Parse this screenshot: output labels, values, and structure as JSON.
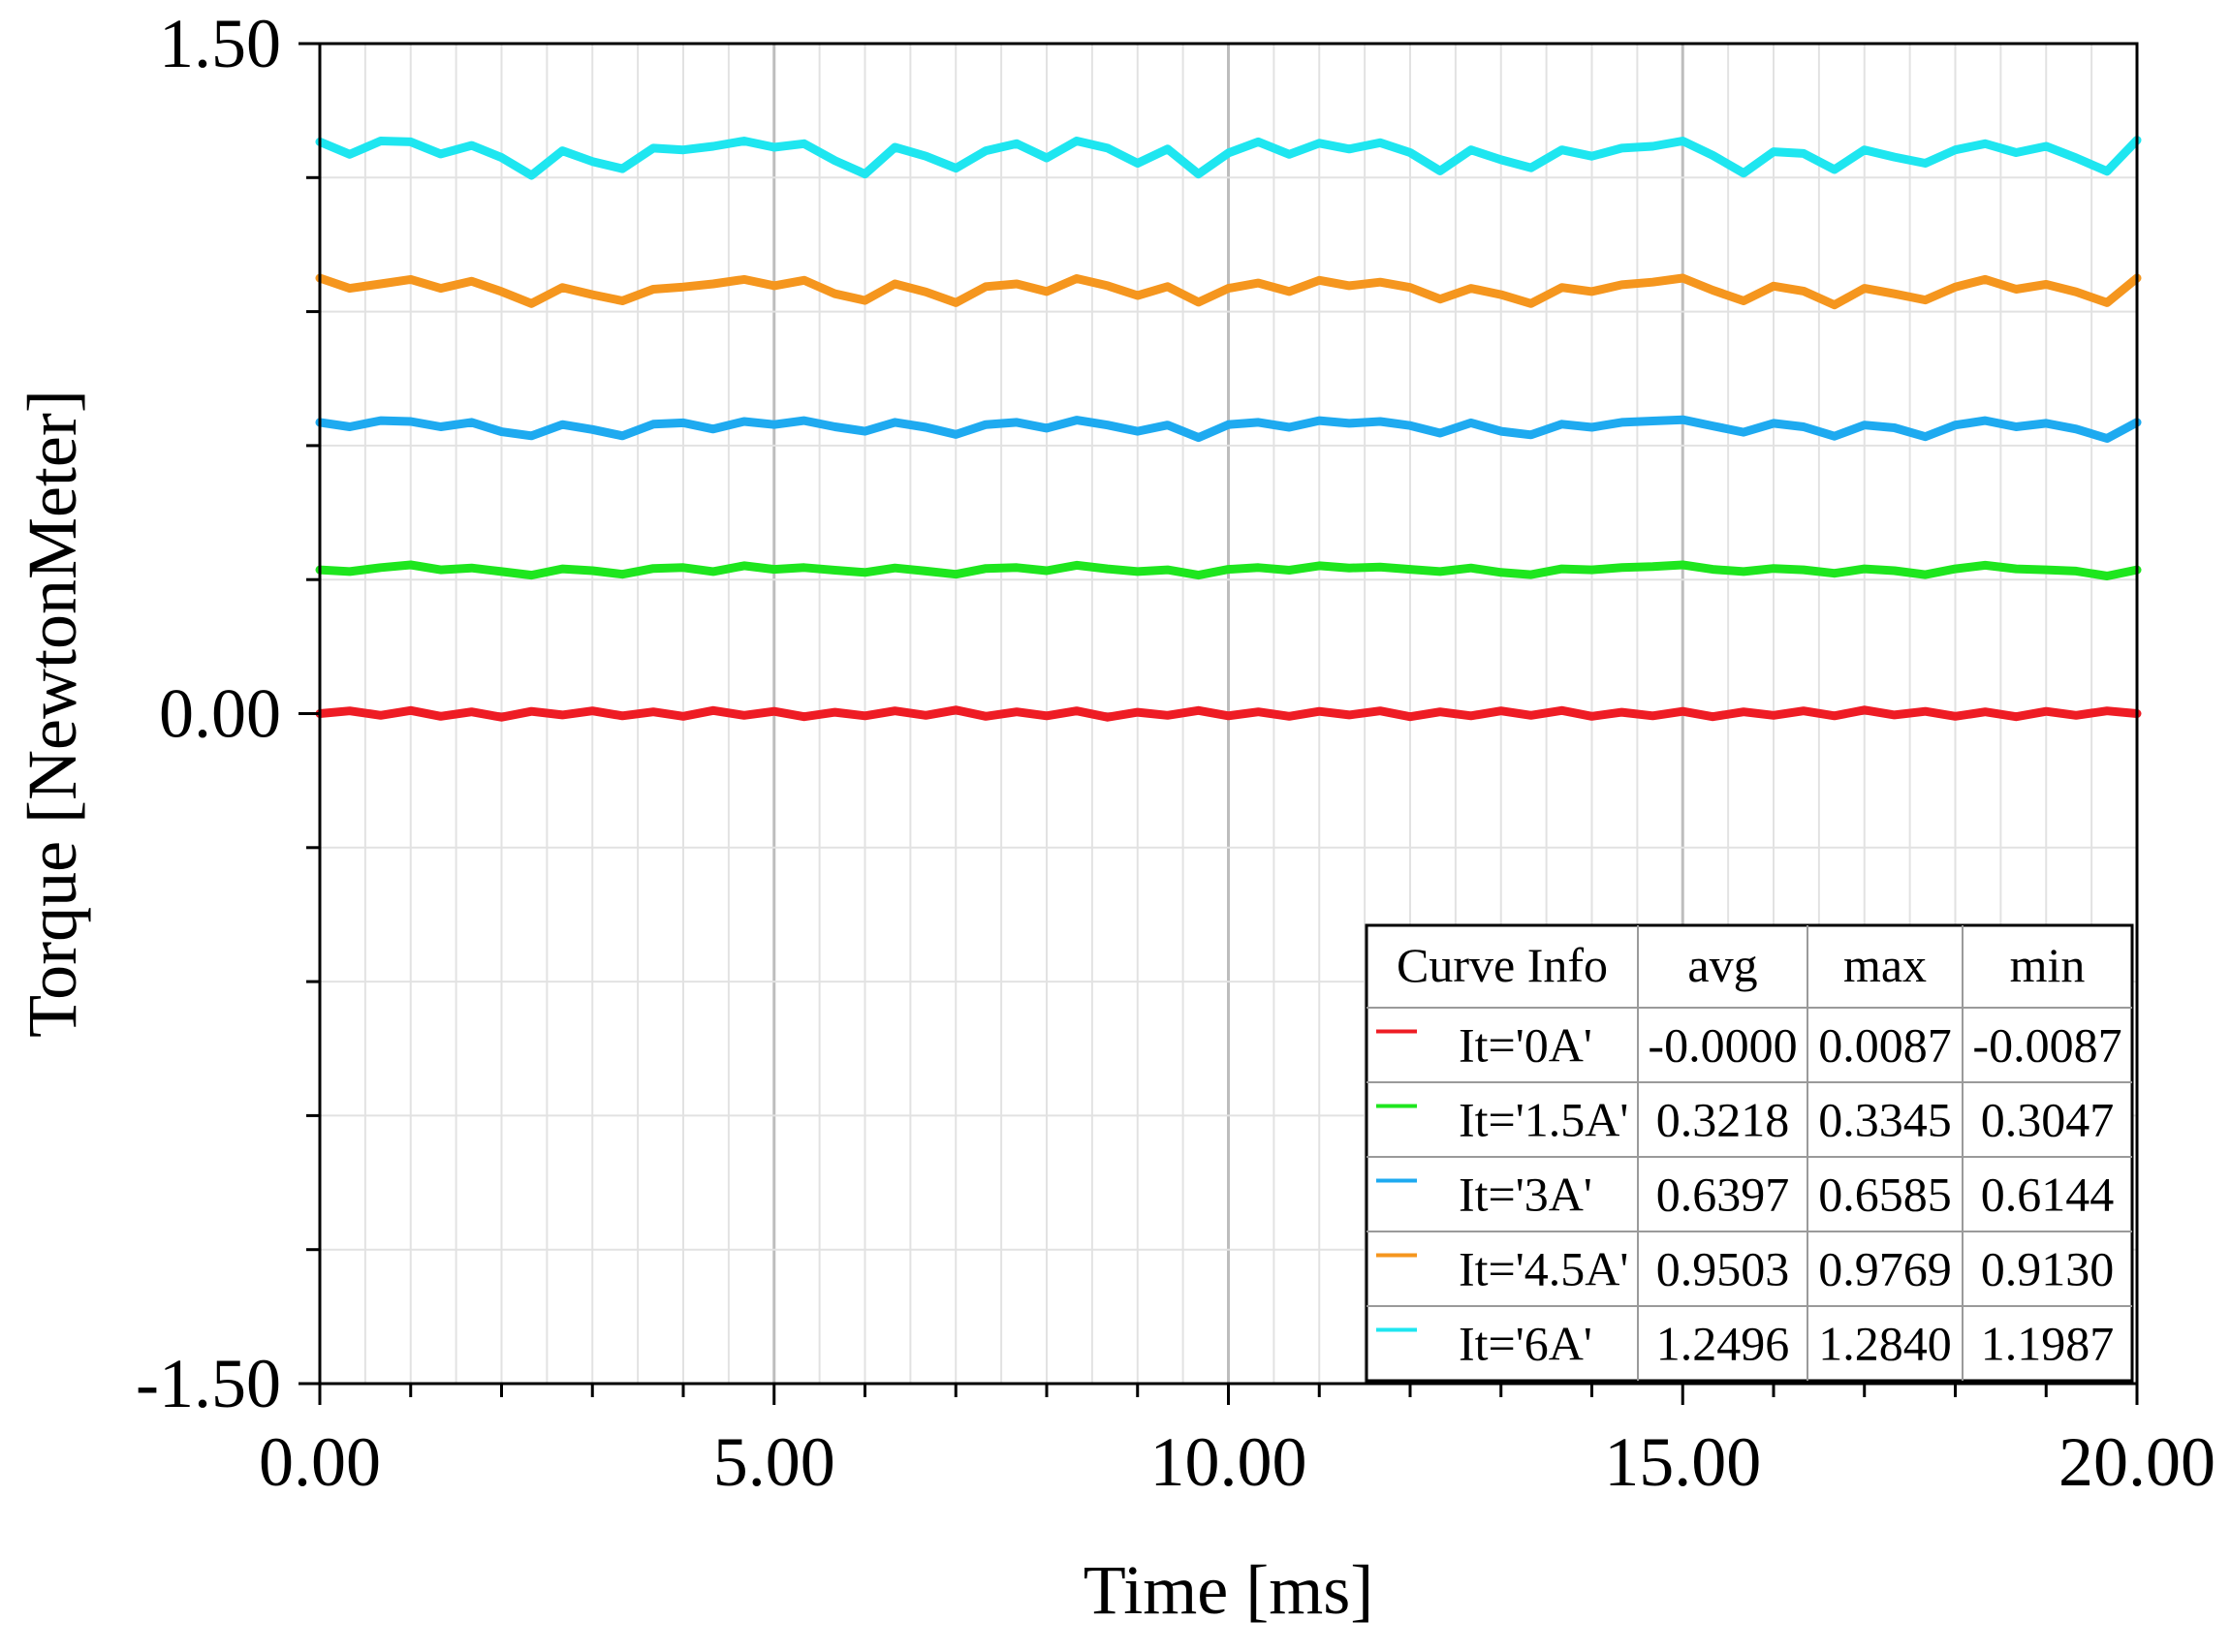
{
  "chart_data": {
    "type": "line",
    "title": "",
    "xlabel": "Time [ms]",
    "ylabel": "Torque [NewtonMeter]",
    "xlim": [
      0,
      20
    ],
    "ylim": [
      -1.5,
      1.5
    ],
    "x_ticks": [
      0,
      5,
      10,
      15,
      20
    ],
    "x_tick_labels": [
      "0.00",
      "5.00",
      "10.00",
      "15.00",
      "20.00"
    ],
    "y_ticks": [
      -1.5,
      0,
      1.5
    ],
    "y_tick_labels": [
      "-1.50",
      "0.00",
      "1.50"
    ],
    "grid": true,
    "legend": {
      "placement": "bottom-right",
      "headers": [
        "Curve Info",
        "avg",
        "max",
        "min"
      ]
    },
    "series": [
      {
        "name": "It='0A'",
        "color": "#ee1c24",
        "avg": "-0.0000",
        "max": "0.0087",
        "min": "-0.0087",
        "x": [
          0,
          0.33,
          0.67,
          1,
          1.33,
          1.67,
          2,
          2.33,
          2.67,
          3,
          3.33,
          3.67,
          4,
          4.33,
          4.67,
          5,
          5.33,
          5.67,
          6,
          6.33,
          6.67,
          7,
          7.33,
          7.67,
          8,
          8.33,
          8.67,
          9,
          9.33,
          9.67,
          10,
          10.33,
          10.67,
          11,
          11.33,
          11.67,
          12,
          12.33,
          12.67,
          13,
          13.33,
          13.67,
          14,
          14.33,
          14.67,
          15,
          15.33,
          15.67,
          16,
          16.33,
          16.67,
          17,
          17.33,
          17.67,
          18,
          18.33,
          18.67,
          19,
          19.33,
          19.67,
          20
        ],
        "y": [
          0,
          0.006,
          -0.004,
          0.007,
          -0.006,
          0.004,
          -0.008,
          0.005,
          -0.003,
          0.006,
          -0.005,
          0.004,
          -0.006,
          0.007,
          -0.004,
          0.005,
          -0.007,
          0.003,
          -0.005,
          0.006,
          -0.004,
          0.008,
          -0.006,
          0.004,
          -0.005,
          0.006,
          -0.008,
          0.003,
          -0.004,
          0.007,
          -0.005,
          0.004,
          -0.006,
          0.005,
          -0.003,
          0.006,
          -0.007,
          0.004,
          -0.005,
          0.006,
          -0.004,
          0.007,
          -0.006,
          0.003,
          -0.005,
          0.005,
          -0.007,
          0.004,
          -0.004,
          0.006,
          -0.005,
          0.008,
          -0.003,
          0.005,
          -0.006,
          0.004,
          -0.007,
          0.005,
          -0.004,
          0.006,
          0
        ]
      },
      {
        "name": "It='1.5A'",
        "color": "#1ee61e",
        "avg": "0.3218",
        "max": "0.3345",
        "min": "0.3047",
        "x": [
          0,
          0.33,
          0.67,
          1,
          1.33,
          1.67,
          2,
          2.33,
          2.67,
          3,
          3.33,
          3.67,
          4,
          4.33,
          4.67,
          5,
          5.33,
          5.67,
          6,
          6.33,
          6.67,
          7,
          7.33,
          7.67,
          8,
          8.33,
          8.67,
          9,
          9.33,
          9.67,
          10,
          10.33,
          10.67,
          11,
          11.33,
          11.67,
          12,
          12.33,
          12.67,
          13,
          13.33,
          13.67,
          14,
          14.33,
          14.67,
          15,
          15.33,
          15.67,
          16,
          16.33,
          16.67,
          17,
          17.33,
          17.67,
          18,
          18.33,
          18.67,
          19,
          19.33,
          19.67,
          20
        ],
        "y": [
          0.322,
          0.318,
          0.327,
          0.333,
          0.322,
          0.326,
          0.318,
          0.31,
          0.324,
          0.32,
          0.312,
          0.325,
          0.327,
          0.318,
          0.331,
          0.323,
          0.327,
          0.321,
          0.316,
          0.326,
          0.319,
          0.312,
          0.325,
          0.327,
          0.32,
          0.332,
          0.324,
          0.318,
          0.322,
          0.31,
          0.323,
          0.327,
          0.321,
          0.331,
          0.326,
          0.328,
          0.323,
          0.318,
          0.326,
          0.316,
          0.311,
          0.324,
          0.322,
          0.327,
          0.329,
          0.333,
          0.323,
          0.318,
          0.325,
          0.322,
          0.314,
          0.324,
          0.32,
          0.311,
          0.324,
          0.332,
          0.324,
          0.322,
          0.319,
          0.308,
          0.322
        ]
      },
      {
        "name": "It='3A'",
        "color": "#1eaaf0",
        "avg": "0.6397",
        "max": "0.6585",
        "min": "0.6144",
        "x": [
          0,
          0.33,
          0.67,
          1,
          1.33,
          1.67,
          2,
          2.33,
          2.67,
          3,
          3.33,
          3.67,
          4,
          4.33,
          4.67,
          5,
          5.33,
          5.67,
          6,
          6.33,
          6.67,
          7,
          7.33,
          7.67,
          8,
          8.33,
          8.67,
          9,
          9.33,
          9.67,
          10,
          10.33,
          10.67,
          11,
          11.33,
          11.67,
          12,
          12.33,
          12.67,
          13,
          13.33,
          13.67,
          14,
          14.33,
          14.67,
          15,
          15.33,
          15.67,
          16,
          16.33,
          16.67,
          17,
          17.33,
          17.67,
          18,
          18.33,
          18.67,
          19,
          19.33,
          19.67,
          20
        ],
        "y": [
          0.652,
          0.642,
          0.656,
          0.654,
          0.642,
          0.652,
          0.631,
          0.622,
          0.647,
          0.636,
          0.622,
          0.648,
          0.651,
          0.637,
          0.654,
          0.647,
          0.656,
          0.642,
          0.632,
          0.652,
          0.641,
          0.625,
          0.647,
          0.652,
          0.639,
          0.657,
          0.646,
          0.632,
          0.646,
          0.618,
          0.647,
          0.652,
          0.641,
          0.656,
          0.65,
          0.654,
          0.645,
          0.628,
          0.651,
          0.632,
          0.624,
          0.648,
          0.641,
          0.652,
          0.655,
          0.658,
          0.644,
          0.63,
          0.65,
          0.642,
          0.621,
          0.646,
          0.64,
          0.62,
          0.646,
          0.656,
          0.642,
          0.65,
          0.637,
          0.616,
          0.652
        ]
      },
      {
        "name": "It='4.5A'",
        "color": "#f5961e",
        "avg": "0.9503",
        "max": "0.9769",
        "min": "0.9130",
        "x": [
          0,
          0.33,
          0.67,
          1,
          1.33,
          1.67,
          2,
          2.33,
          2.67,
          3,
          3.33,
          3.67,
          4,
          4.33,
          4.67,
          5,
          5.33,
          5.67,
          6,
          6.33,
          6.67,
          7,
          7.33,
          7.67,
          8,
          8.33,
          8.67,
          9,
          9.33,
          9.67,
          10,
          10.33,
          10.67,
          11,
          11.33,
          11.67,
          12,
          12.33,
          12.67,
          13,
          13.33,
          13.67,
          14,
          14.33,
          14.67,
          15,
          15.33,
          15.67,
          16,
          16.33,
          16.67,
          17,
          17.33,
          17.67,
          18,
          18.33,
          18.67,
          19,
          19.33,
          19.67,
          20
        ],
        "y": [
          0.975,
          0.952,
          0.962,
          0.972,
          0.952,
          0.968,
          0.945,
          0.918,
          0.954,
          0.938,
          0.924,
          0.95,
          0.955,
          0.962,
          0.972,
          0.958,
          0.97,
          0.94,
          0.925,
          0.962,
          0.944,
          0.92,
          0.956,
          0.962,
          0.945,
          0.974,
          0.958,
          0.936,
          0.956,
          0.921,
          0.952,
          0.964,
          0.945,
          0.97,
          0.958,
          0.966,
          0.954,
          0.928,
          0.952,
          0.938,
          0.918,
          0.954,
          0.945,
          0.96,
          0.966,
          0.975,
          0.948,
          0.924,
          0.957,
          0.946,
          0.915,
          0.952,
          0.94,
          0.926,
          0.955,
          0.972,
          0.95,
          0.961,
          0.944,
          0.92,
          0.975
        ]
      },
      {
        "name": "It='6A'",
        "color": "#1ee6f0",
        "avg": "1.2496",
        "max": "1.2840",
        "min": "1.1987",
        "x": [
          0,
          0.33,
          0.67,
          1,
          1.33,
          1.67,
          2,
          2.33,
          2.67,
          3,
          3.33,
          3.67,
          4,
          4.33,
          4.67,
          5,
          5.33,
          5.67,
          6,
          6.33,
          6.67,
          7,
          7.33,
          7.67,
          8,
          8.33,
          8.67,
          9,
          9.33,
          9.67,
          10,
          10.33,
          10.67,
          11,
          11.33,
          11.67,
          12,
          12.33,
          12.67,
          13,
          13.33,
          13.67,
          14,
          14.33,
          14.67,
          15,
          15.33,
          15.67,
          16,
          16.33,
          16.67,
          17,
          17.33,
          17.67,
          18,
          18.33,
          18.67,
          19,
          19.33,
          19.67,
          20
        ],
        "y": [
          1.28,
          1.252,
          1.282,
          1.28,
          1.253,
          1.272,
          1.245,
          1.205,
          1.26,
          1.236,
          1.22,
          1.266,
          1.262,
          1.27,
          1.282,
          1.268,
          1.276,
          1.238,
          1.208,
          1.268,
          1.248,
          1.221,
          1.26,
          1.276,
          1.244,
          1.282,
          1.266,
          1.232,
          1.264,
          1.208,
          1.255,
          1.28,
          1.252,
          1.277,
          1.264,
          1.278,
          1.256,
          1.215,
          1.262,
          1.24,
          1.222,
          1.262,
          1.248,
          1.266,
          1.27,
          1.282,
          1.25,
          1.21,
          1.258,
          1.254,
          1.218,
          1.262,
          1.246,
          1.232,
          1.262,
          1.276,
          1.256,
          1.27,
          1.244,
          1.214,
          1.284
        ]
      }
    ]
  }
}
